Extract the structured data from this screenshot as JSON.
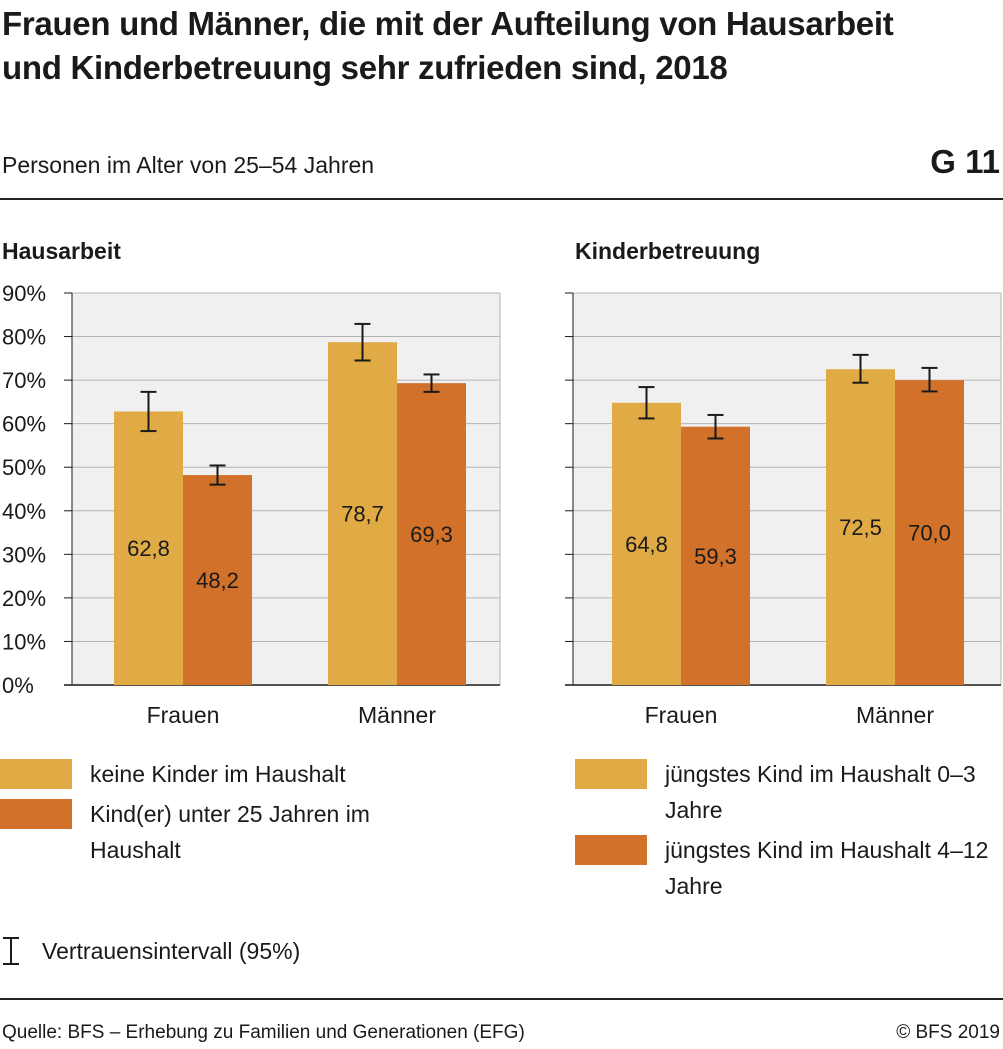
{
  "header": {
    "title": "Frauen und Männer, die mit der Aufteilung von Hausarbeit und Kinderbetreuung sehr zufrieden sind, 2018",
    "subtitle": "Personen im Alter von 25–54 Jahren",
    "code": "G 11"
  },
  "colors": {
    "series1": "#e0aa45",
    "series2": "#d2712a",
    "plot_bg": "#f0f0f0",
    "grid": "#b4b4b4"
  },
  "chart_data": [
    {
      "type": "bar",
      "title": "Hausarbeit",
      "categories": [
        "Frauen",
        "Männer"
      ],
      "series": [
        {
          "name": "keine Kinder im Haushalt",
          "values": [
            62.8,
            78.7
          ],
          "ci": [
            [
              58.3,
              67.3
            ],
            [
              74.5,
              82.9
            ]
          ]
        },
        {
          "name": "Kind(er) unter 25 Jahren im Haushalt",
          "values": [
            48.2,
            69.3
          ],
          "ci": [
            [
              46.0,
              50.4
            ],
            [
              67.3,
              71.3
            ]
          ]
        }
      ],
      "value_labels": [
        [
          "62,8",
          "78,7"
        ],
        [
          "48,2",
          "69,3"
        ]
      ],
      "yticks": [
        "0%",
        "10%",
        "20%",
        "30%",
        "40%",
        "50%",
        "60%",
        "70%",
        "80%",
        "90%"
      ],
      "ylim": [
        0,
        90
      ],
      "grid": true
    },
    {
      "type": "bar",
      "title": "Kinderbetreuung",
      "categories": [
        "Frauen",
        "Männer"
      ],
      "series": [
        {
          "name": "jüngstes Kind im Haushalt 0–3 Jahre",
          "values": [
            64.8,
            72.5
          ],
          "ci": [
            [
              61.2,
              68.4
            ],
            [
              69.4,
              75.8
            ]
          ]
        },
        {
          "name": "jüngstes Kind im Haushalt 4–12 Jahre",
          "values": [
            59.3,
            70.0
          ],
          "ci": [
            [
              56.6,
              62.0
            ],
            [
              67.4,
              72.8
            ]
          ]
        }
      ],
      "value_labels": [
        [
          "64,8",
          "72,5"
        ],
        [
          "59,3",
          "70,0"
        ]
      ],
      "ylim": [
        0,
        90
      ],
      "grid": true
    }
  ],
  "legend": {
    "left": [
      {
        "label": "keine Kinder im Haushalt"
      },
      {
        "label": "Kind(er) unter 25 Jahren im Haushalt"
      }
    ],
    "right": [
      {
        "label": "jüngstes Kind im Haushalt 0–3 Jahre"
      },
      {
        "label": "jüngstes Kind im Haushalt 4–12 Jahre"
      }
    ],
    "ci_label": "Vertrauensintervall (95%)"
  },
  "footer": {
    "source": "Quelle: BFS – Erhebung zu Familien und Generationen (EFG)",
    "copyright": "© BFS 2019"
  }
}
